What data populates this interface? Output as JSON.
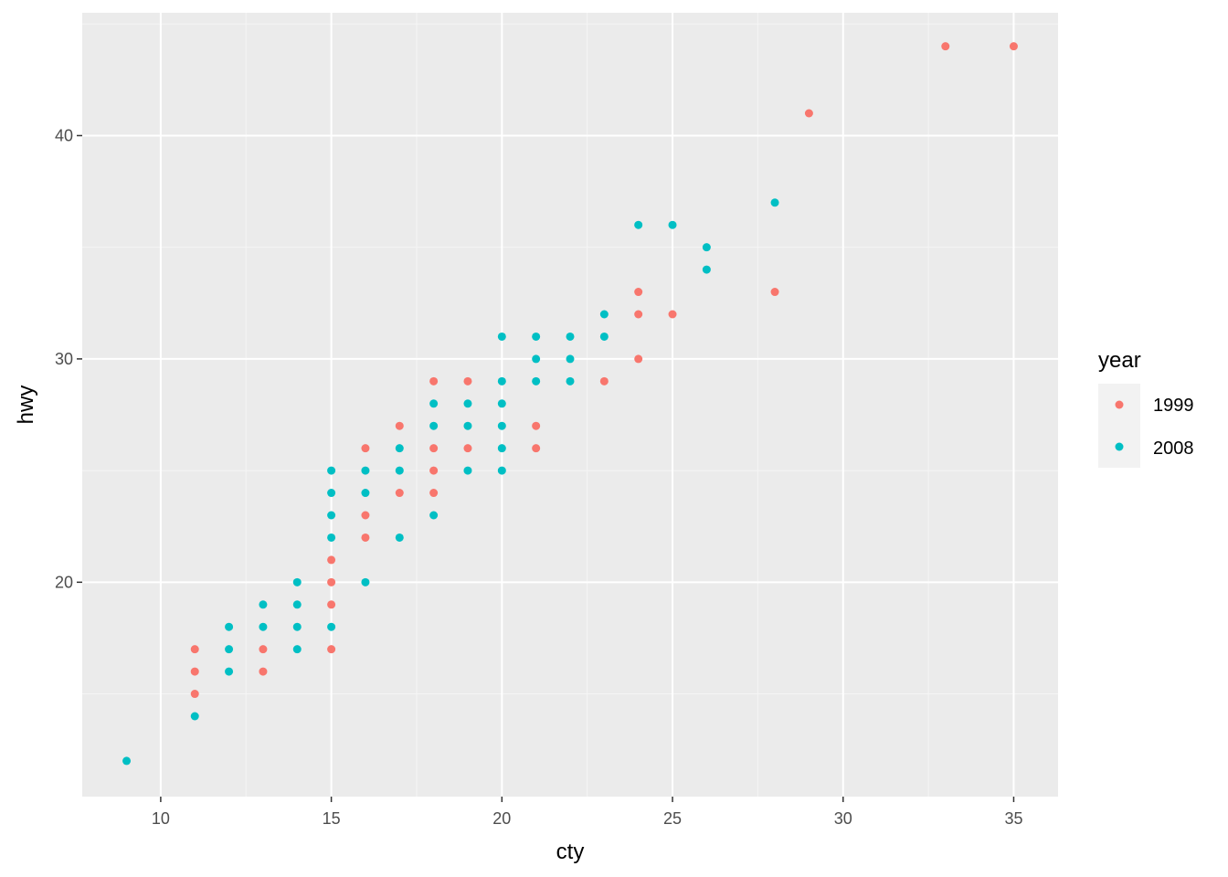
{
  "chart_data": {
    "type": "scatter",
    "xlabel": "cty",
    "ylabel": "hwy",
    "xlim": [
      7.7,
      36.3
    ],
    "ylim": [
      10.4,
      45.5
    ],
    "x_ticks": [
      10,
      15,
      20,
      25,
      30,
      35
    ],
    "y_ticks": [
      20,
      30,
      40
    ],
    "x_tick_labels": [
      "10",
      "15",
      "20",
      "25",
      "30",
      "35"
    ],
    "y_tick_labels": [
      "20",
      "30",
      "40"
    ],
    "grid": true,
    "legend": {
      "title": "year",
      "placement": "right",
      "entries": [
        "1999",
        "2008"
      ]
    },
    "colors": {
      "1999": "#F8766D",
      "2008": "#00BFC4",
      "panel_background": "#EBEBEB",
      "grid_major": "#FFFFFF",
      "grid_minor": "#F5F5F5"
    },
    "series": [
      {
        "name": "1999",
        "points": [
          [
            11,
            17
          ],
          [
            11,
            16
          ],
          [
            11,
            15
          ],
          [
            13,
            17
          ],
          [
            13,
            16
          ],
          [
            15,
            21
          ],
          [
            15,
            20
          ],
          [
            15,
            19
          ],
          [
            15,
            17
          ],
          [
            16,
            26
          ],
          [
            16,
            23
          ],
          [
            16,
            22
          ],
          [
            17,
            27
          ],
          [
            17,
            24
          ],
          [
            18,
            29
          ],
          [
            18,
            26
          ],
          [
            18,
            25
          ],
          [
            18,
            24
          ],
          [
            19,
            29
          ],
          [
            19,
            26
          ],
          [
            21,
            27
          ],
          [
            21,
            26
          ],
          [
            23,
            29
          ],
          [
            24,
            33
          ],
          [
            24,
            32
          ],
          [
            24,
            30
          ],
          [
            25,
            32
          ],
          [
            28,
            33
          ],
          [
            29,
            41
          ],
          [
            33,
            44
          ],
          [
            35,
            44
          ]
        ]
      },
      {
        "name": "2008",
        "points": [
          [
            9,
            12
          ],
          [
            11,
            14
          ],
          [
            12,
            18
          ],
          [
            12,
            17
          ],
          [
            12,
            16
          ],
          [
            13,
            19
          ],
          [
            13,
            18
          ],
          [
            14,
            20
          ],
          [
            14,
            19
          ],
          [
            14,
            18
          ],
          [
            14,
            17
          ],
          [
            15,
            25
          ],
          [
            15,
            24
          ],
          [
            15,
            23
          ],
          [
            15,
            22
          ],
          [
            15,
            18
          ],
          [
            16,
            25
          ],
          [
            16,
            24
          ],
          [
            16,
            20
          ],
          [
            17,
            26
          ],
          [
            17,
            25
          ],
          [
            17,
            22
          ],
          [
            18,
            28
          ],
          [
            18,
            27
          ],
          [
            18,
            23
          ],
          [
            19,
            28
          ],
          [
            19,
            27
          ],
          [
            19,
            25
          ],
          [
            20,
            31
          ],
          [
            20,
            29
          ],
          [
            20,
            28
          ],
          [
            20,
            27
          ],
          [
            20,
            26
          ],
          [
            20,
            25
          ],
          [
            21,
            31
          ],
          [
            21,
            30
          ],
          [
            21,
            29
          ],
          [
            22,
            31
          ],
          [
            22,
            30
          ],
          [
            22,
            29
          ],
          [
            23,
            32
          ],
          [
            23,
            31
          ],
          [
            24,
            36
          ],
          [
            25,
            36
          ],
          [
            26,
            35
          ],
          [
            26,
            34
          ],
          [
            28,
            37
          ]
        ]
      }
    ]
  }
}
